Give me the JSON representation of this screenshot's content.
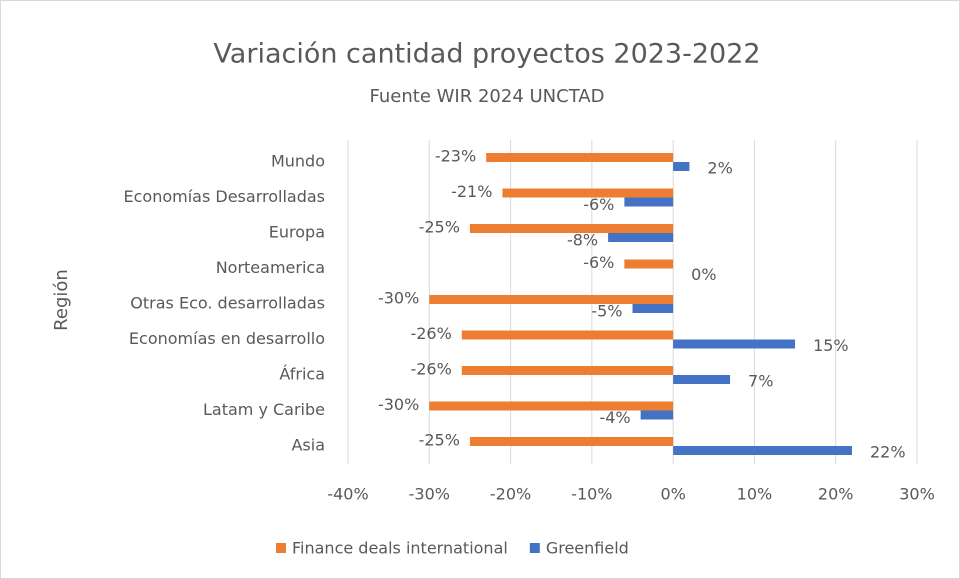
{
  "chart_data": {
    "type": "bar",
    "orientation": "horizontal",
    "title": "Variación cantidad proyectos 2023-2022",
    "subtitle": "Fuente WIR 2024 UNCTAD",
    "y_label": "Región",
    "categories": [
      "Mundo",
      "Economías Desarrolladas",
      "Europa",
      "Norteamerica",
      "Otras Eco. desarrolladas",
      "Economías en desarrollo",
      "África",
      "Latam y Caribe",
      "Asia"
    ],
    "series": [
      {
        "name": "Finance deals international",
        "color": "#ed7d31",
        "values": [
          -23,
          -21,
          -25,
          -6,
          -30,
          -26,
          -26,
          -30,
          -25
        ],
        "value_labels": [
          "-23%",
          "-21%",
          "-25%",
          "-6%",
          "-30%",
          "-26%",
          "-26%",
          "-30%",
          "-25%"
        ]
      },
      {
        "name": "Greenfield",
        "color": "#4472c4",
        "values": [
          2,
          -6,
          -8,
          0,
          -5,
          15,
          7,
          -4,
          22
        ],
        "value_labels": [
          "2%",
          "-6%",
          "-8%",
          "0%",
          "-5%",
          "15%",
          "7%",
          "-4%",
          "22%"
        ]
      }
    ],
    "xlim": [
      -40,
      30
    ],
    "xticks": [
      {
        "value": -40,
        "label": "-40%"
      },
      {
        "value": -30,
        "label": "-30%"
      },
      {
        "value": -20,
        "label": "-20%"
      },
      {
        "value": -10,
        "label": "-10%"
      },
      {
        "value": 0,
        "label": "0%"
      },
      {
        "value": 10,
        "label": "10%"
      },
      {
        "value": 20,
        "label": "20%"
      },
      {
        "value": 30,
        "label": "30%"
      }
    ],
    "grid": true,
    "legend": "bottom"
  }
}
